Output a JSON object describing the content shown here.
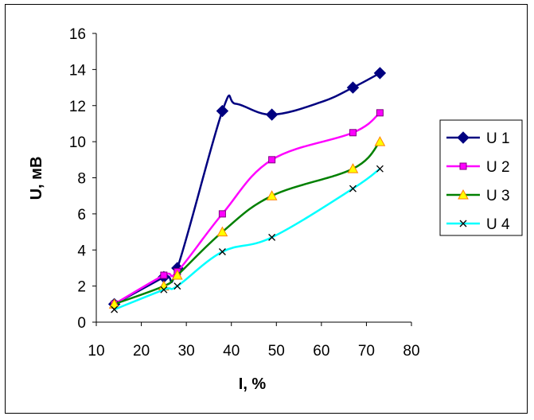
{
  "chart_data": {
    "type": "line",
    "title": "",
    "xlabel": "I, %",
    "ylabel": "U, мВ",
    "xlim": [
      10,
      80
    ],
    "ylim": [
      0,
      16
    ],
    "x_ticks": [
      10,
      20,
      30,
      40,
      50,
      60,
      70,
      80
    ],
    "y_ticks": [
      0,
      2,
      4,
      6,
      8,
      10,
      12,
      14,
      16
    ],
    "grid": false,
    "legend_position": "right",
    "series": [
      {
        "name": "U 1",
        "color": "#000080",
        "marker": "diamond",
        "x": [
          14,
          25,
          28,
          38,
          49,
          67,
          73
        ],
        "y": [
          1.0,
          2.5,
          3.0,
          11.7,
          11.5,
          13.0,
          13.8
        ],
        "curve_y": [
          1.0,
          2.5,
          3.0,
          11.7,
          12.1,
          11.5,
          12.2,
          13.0,
          13.8
        ],
        "curve_x": [
          14,
          25,
          28,
          38,
          41,
          49,
          60,
          67,
          73
        ]
      },
      {
        "name": "U 2",
        "color": "#ff00ff",
        "marker": "square",
        "x": [
          14,
          25,
          28,
          38,
          49,
          67,
          73
        ],
        "y": [
          1.0,
          2.6,
          2.8,
          6.0,
          9.0,
          10.5,
          11.6
        ]
      },
      {
        "name": "U 3",
        "color": "#008000",
        "marker": "triangle",
        "x": [
          14,
          25,
          28,
          38,
          49,
          67,
          73
        ],
        "y": [
          1.0,
          2.0,
          2.6,
          5.0,
          7.0,
          8.5,
          10.0
        ]
      },
      {
        "name": "U 4",
        "color": "#00ffff",
        "marker": "x",
        "x": [
          14,
          25,
          28,
          38,
          49,
          67,
          73
        ],
        "y": [
          0.7,
          1.8,
          2.0,
          3.9,
          4.7,
          7.4,
          8.5
        ]
      }
    ]
  }
}
